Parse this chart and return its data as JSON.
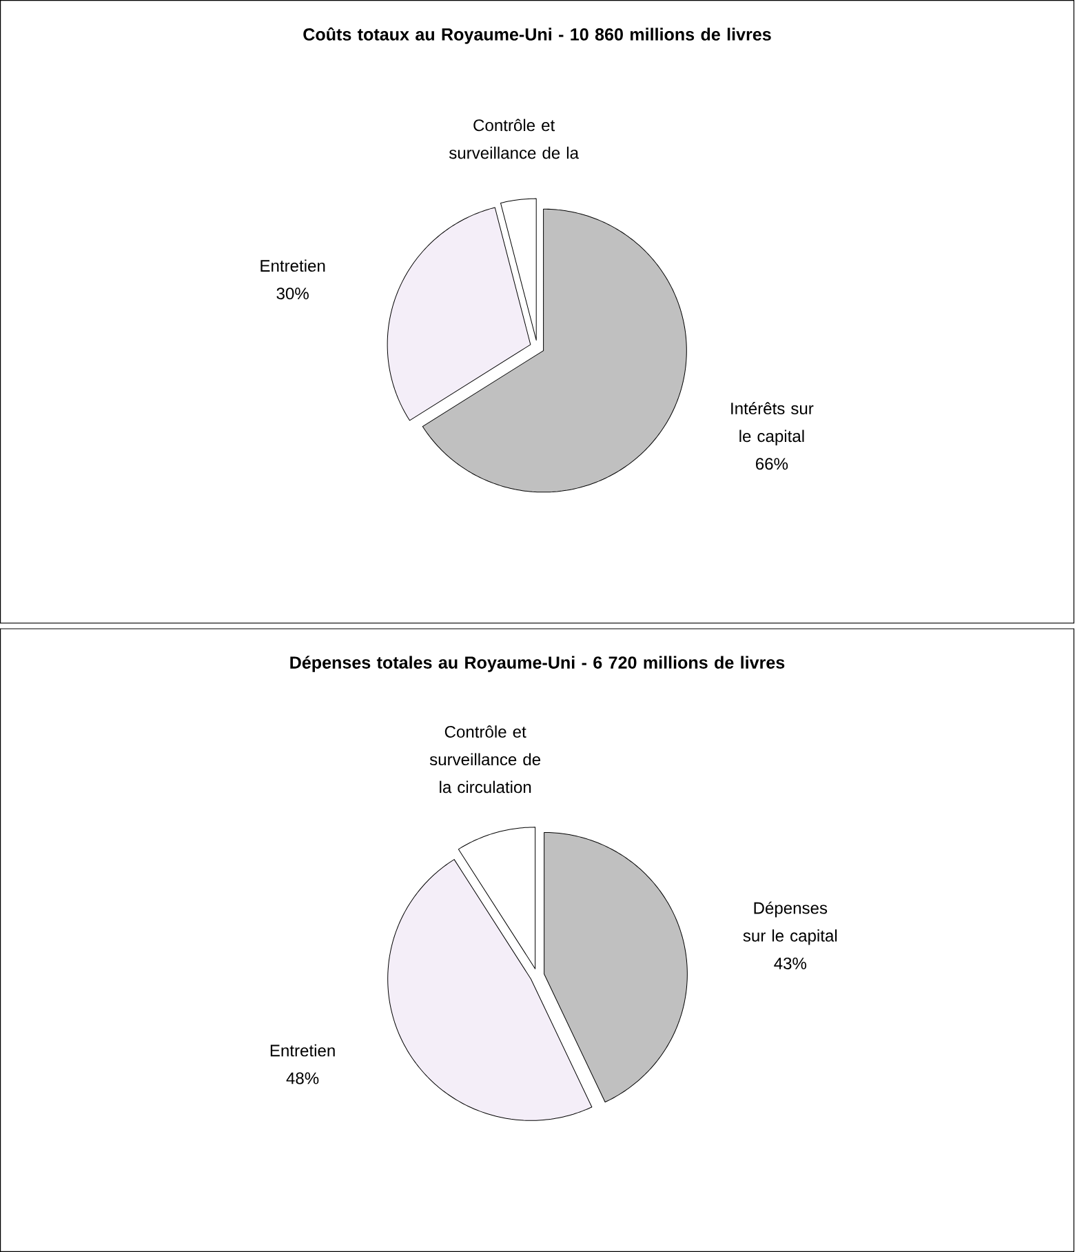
{
  "chart_data": [
    {
      "type": "pie",
      "title": "Coûts totaux au Royaume-Uni - 10 860 millions de livres",
      "categories": [
        "Intérêts sur le capital",
        "Entretien",
        "Contrôle et surveillance de la"
      ],
      "values": [
        66,
        30,
        4
      ],
      "colors": [
        "#c0c0c0",
        "#f4eef8",
        "#ffffff"
      ],
      "value_labels": [
        "66%",
        "30%",
        null
      ]
    },
    {
      "type": "pie",
      "title": "Dépenses totales au Royaume-Uni - 6 720 millions de livres",
      "categories": [
        "Dépenses sur le capital",
        "Entretien",
        "Contrôle et surveillance de la circulation"
      ],
      "values": [
        43,
        48,
        9
      ],
      "colors": [
        "#c0c0c0",
        "#f4eef8",
        "#ffffff"
      ],
      "value_labels": [
        "43%",
        "48%",
        null
      ]
    }
  ]
}
